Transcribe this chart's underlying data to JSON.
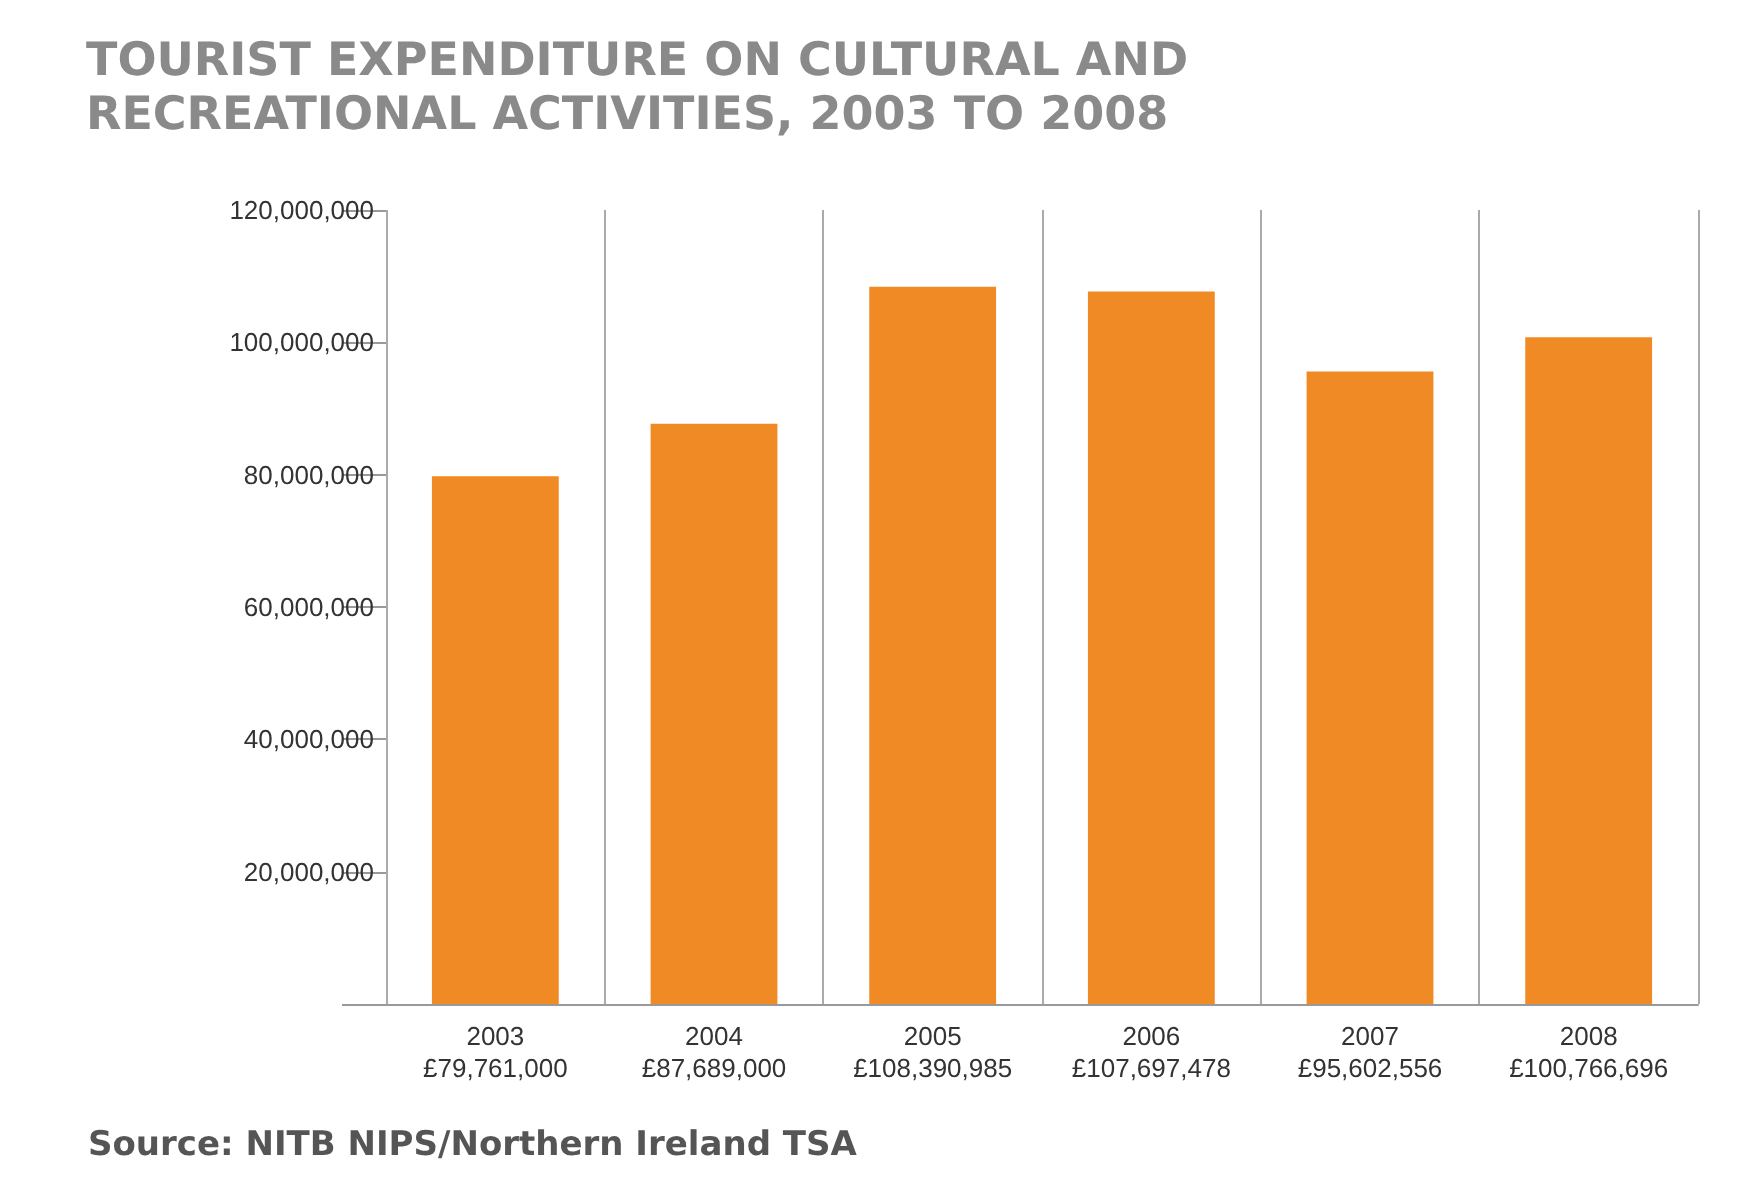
{
  "chart_data": {
    "type": "bar",
    "title": "TOURIST EXPENDITURE ON CULTURAL AND RECREATIONAL ACTIVITIES, 2003 TO 2008",
    "categories": [
      "2003",
      "2004",
      "2005",
      "2006",
      "2007",
      "2008"
    ],
    "values": [
      79761000,
      87689000,
      108390985,
      107697478,
      95602556,
      100766696
    ],
    "value_labels": [
      "£79,761,000",
      "£87,689,000",
      "£108,390,985",
      "£107,697,478",
      "£95,602,556",
      "£100,766,696"
    ],
    "color": "#f08a24",
    "ylim": [
      0,
      120000000
    ],
    "yticks": [
      {
        "value": 0,
        "label": null
      },
      {
        "value": 20000000,
        "label": "20,000,000"
      },
      {
        "value": 40000000,
        "label": "40,000,000"
      },
      {
        "value": 60000000,
        "label": "60,000,000"
      },
      {
        "value": 80000000,
        "label": "80,000,000"
      },
      {
        "value": 100000000,
        "label": "100,000,000"
      },
      {
        "value": 120000000,
        "label": "120,000,000"
      }
    ],
    "grid": "x",
    "annotations": [
      "Source: NITB NIPS/Northern Ireland TSA"
    ]
  }
}
